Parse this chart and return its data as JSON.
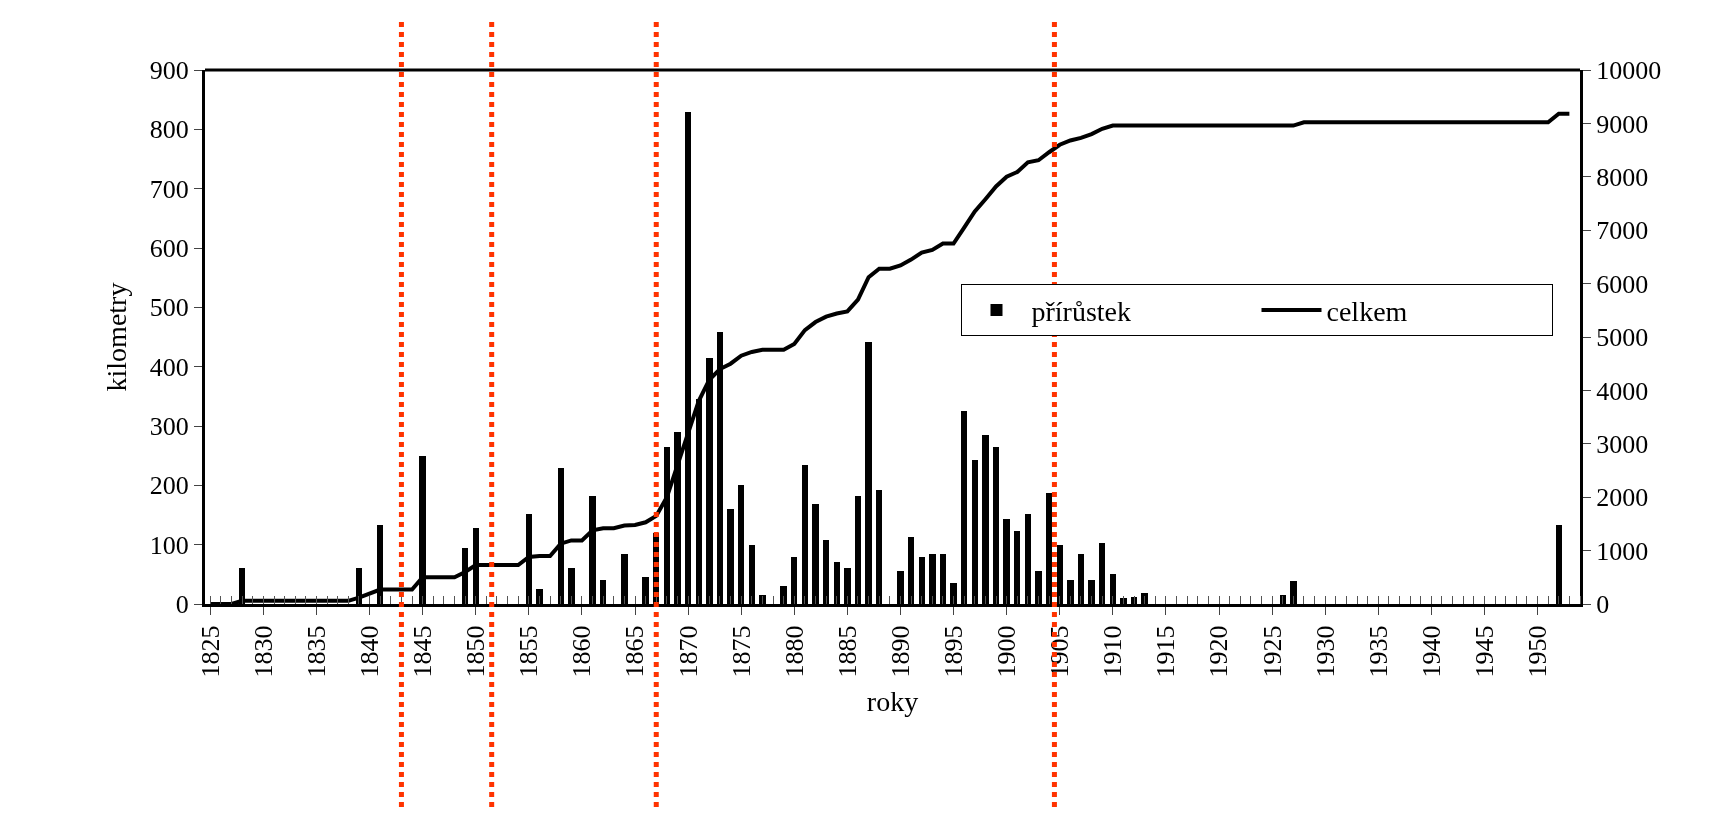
{
  "chart_data": {
    "type": "bar",
    "xlabel": "roky",
    "ylabel": "kilometry",
    "xlim": [
      1824.5,
      1954
    ],
    "xticks": [
      1825,
      1830,
      1835,
      1840,
      1845,
      1850,
      1855,
      1860,
      1865,
      1870,
      1875,
      1880,
      1885,
      1890,
      1895,
      1900,
      1905,
      1910,
      1915,
      1920,
      1925,
      1930,
      1935,
      1940,
      1945,
      1950
    ],
    "ylim": [
      0,
      900
    ],
    "yticks": [
      0,
      100,
      200,
      300,
      400,
      500,
      600,
      700,
      800,
      900
    ],
    "y2lim": [
      0,
      10000
    ],
    "y2ticks": [
      0,
      1000,
      2000,
      3000,
      4000,
      5000,
      6000,
      7000,
      8000,
      9000,
      10000
    ],
    "legend": "right",
    "series": [
      {
        "name": "přírůstek",
        "color": "#000000",
        "x": [
          1828,
          1839,
          1841,
          1845,
          1849,
          1850,
          1855,
          1856,
          1858,
          1859,
          1861,
          1862,
          1864,
          1866,
          1867,
          1868,
          1869,
          1870,
          1871,
          1872,
          1873,
          1874,
          1875,
          1876,
          1877,
          1879,
          1880,
          1881,
          1882,
          1883,
          1884,
          1885,
          1886,
          1887,
          1888,
          1890,
          1891,
          1892,
          1893,
          1894,
          1895,
          1896,
          1897,
          1898,
          1899,
          1900,
          1901,
          1902,
          1903,
          1904,
          1905,
          1906,
          1907,
          1908,
          1909,
          1910,
          1911,
          1912,
          1913,
          1926,
          1927,
          1952
        ],
        "values": [
          60,
          60,
          133,
          250,
          95,
          128,
          152,
          25,
          230,
          60,
          182,
          40,
          85,
          45,
          120,
          265,
          290,
          830,
          345,
          415,
          458,
          160,
          200,
          100,
          15,
          30,
          80,
          235,
          168,
          108,
          70,
          60,
          182,
          442,
          192,
          55,
          113,
          80,
          85,
          85,
          35,
          325,
          242,
          285,
          265,
          143,
          123,
          152,
          55,
          187,
          100,
          40,
          85,
          40,
          103,
          50,
          10,
          12,
          18,
          15,
          38,
          133
        ]
      },
      {
        "name": "celkem",
        "type": "line",
        "axis": "y2",
        "color": "#000000",
        "line_style": "solid",
        "x": [
          1825,
          1827,
          1828,
          1838,
          1839,
          1841,
          1844,
          1845,
          1848,
          1849,
          1850,
          1854,
          1855,
          1856,
          1857,
          1858,
          1859,
          1860,
          1861,
          1862,
          1863,
          1864,
          1865,
          1866,
          1867,
          1868,
          1869,
          1870,
          1871,
          1872,
          1873,
          1874,
          1875,
          1876,
          1877,
          1879,
          1880,
          1881,
          1882,
          1883,
          1884,
          1885,
          1886,
          1887,
          1888,
          1889,
          1890,
          1891,
          1892,
          1893,
          1894,
          1895,
          1896,
          1897,
          1898,
          1899,
          1900,
          1901,
          1902,
          1903,
          1904,
          1905,
          1906,
          1907,
          1908,
          1909,
          1910,
          1911,
          1927,
          1928,
          1951,
          1952,
          1953
        ],
        "values": [
          0,
          0,
          60,
          60,
          120,
          270,
          270,
          500,
          500,
          600,
          730,
          730,
          880,
          900,
          900,
          1130,
          1190,
          1190,
          1380,
          1420,
          1420,
          1470,
          1480,
          1530,
          1650,
          2000,
          2600,
          3200,
          3800,
          4200,
          4400,
          4500,
          4650,
          4720,
          4760,
          4760,
          4870,
          5130,
          5280,
          5380,
          5440,
          5480,
          5700,
          6120,
          6280,
          6280,
          6340,
          6450,
          6580,
          6630,
          6750,
          6750,
          7050,
          7350,
          7580,
          7820,
          8000,
          8090,
          8270,
          8310,
          8460,
          8600,
          8680,
          8730,
          8800,
          8900,
          8960,
          8960,
          8960,
          9020,
          9020,
          9180,
          9180
        ]
      }
    ],
    "ref_lines": [
      {
        "axis": "x",
        "value": 1843,
        "color": "#ff3300",
        "line_style": "dotted"
      },
      {
        "axis": "x",
        "value": 1851.5,
        "color": "#ff3300",
        "line_style": "dotted"
      },
      {
        "axis": "x",
        "value": 1867,
        "color": "#ff3300",
        "line_style": "dotted"
      },
      {
        "axis": "x",
        "value": 1904.5,
        "color": "#ff3300",
        "line_style": "dotted"
      }
    ]
  }
}
